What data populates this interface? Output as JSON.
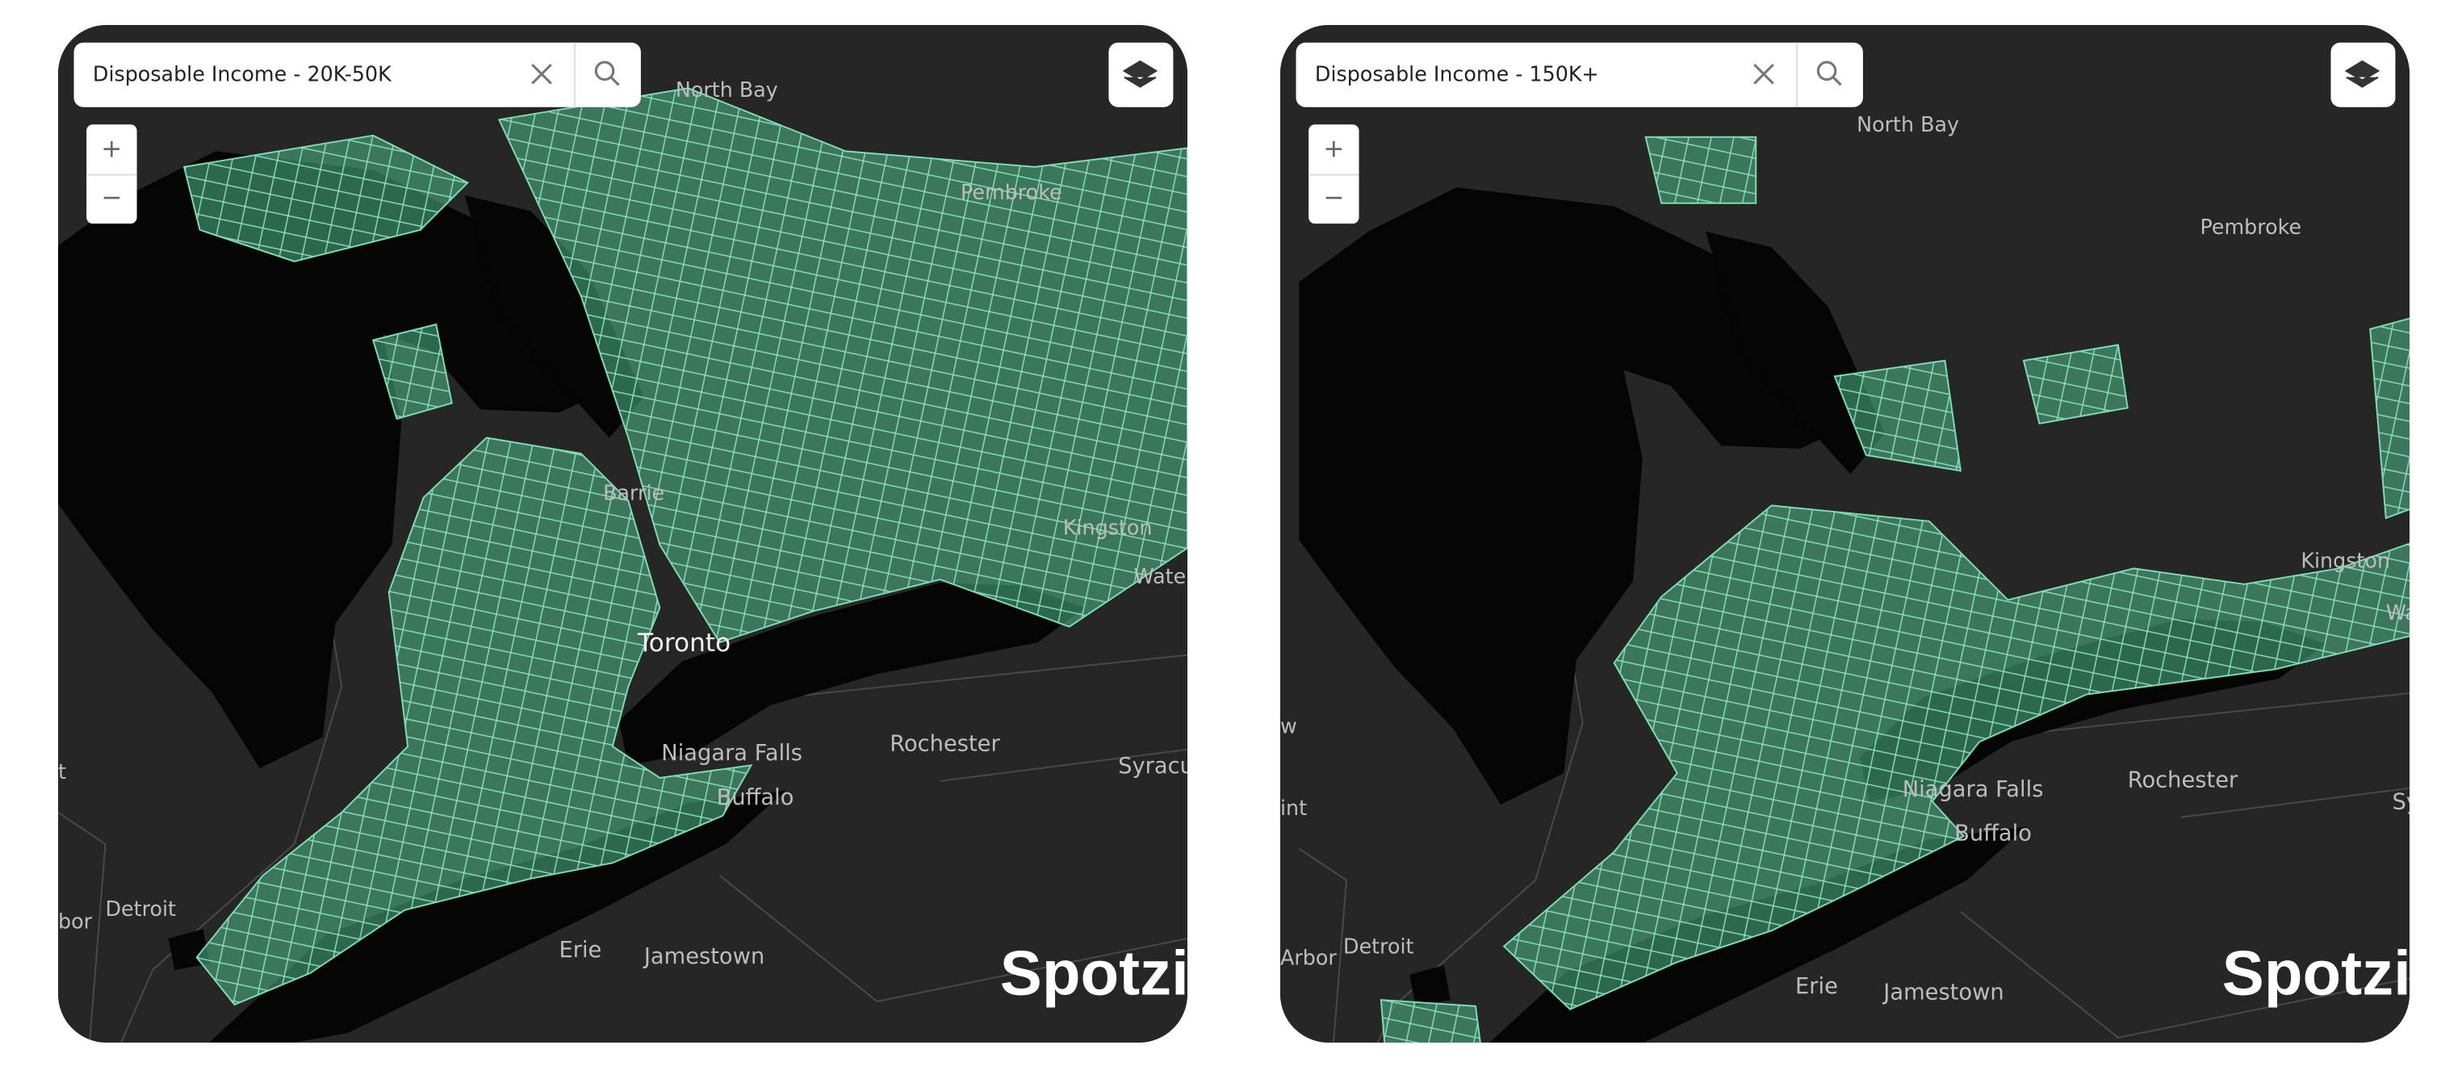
{
  "maps": [
    {
      "search": "Disposable Income - 20K-50K",
      "zoom_in": "+",
      "zoom_out": "−",
      "logo": "Spotzi",
      "labels": [
        "North Bay",
        "Pembroke",
        "Barrie",
        "Kingston",
        "Wate",
        "Toronto",
        "Niagara Falls",
        "Buffalo",
        "Rochester",
        "Syracus",
        "Detroit",
        "bor",
        "t",
        "Erie",
        "Jamestown"
      ]
    },
    {
      "search": "Disposable Income - 150K+",
      "zoom_in": "+",
      "zoom_out": "−",
      "logo": "Spotzi",
      "labels": [
        "North Bay",
        "Pembroke",
        "Kingston",
        "Wat",
        "Niagara Falls",
        "Buffalo",
        "Rochester",
        "Syrac",
        "Detroit",
        "Arbor",
        "int",
        "w",
        "Erie",
        "Jamestown"
      ]
    }
  ]
}
